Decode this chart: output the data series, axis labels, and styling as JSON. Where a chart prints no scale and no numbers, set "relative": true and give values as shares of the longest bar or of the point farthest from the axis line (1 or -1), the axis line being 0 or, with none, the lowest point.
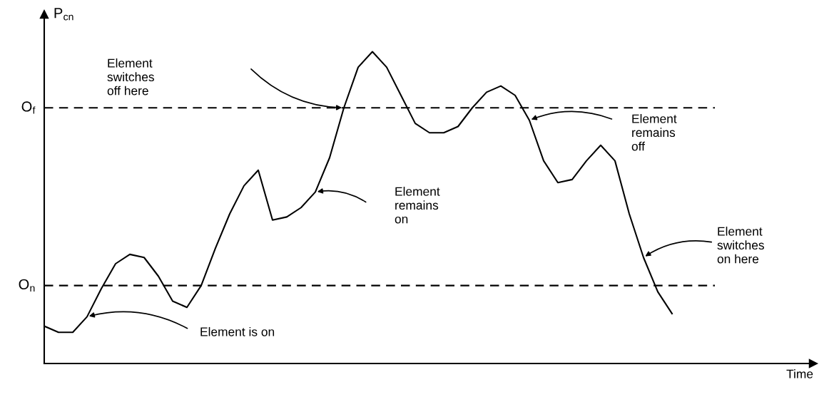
{
  "chart_data": {
    "type": "line",
    "relative": true,
    "ylabel": "P$_{cn}$",
    "categories": [
      null,
      null,
      null,
      null,
      null,
      null,
      null,
      null,
      null,
      null,
      null,
      null,
      null,
      null,
      null,
      null,
      null,
      null,
      null,
      null,
      null,
      null,
      null,
      null,
      null,
      null,
      null,
      null,
      null,
      null,
      null,
      null,
      null,
      null,
      null,
      null,
      null,
      null,
      null,
      null,
      null,
      null,
      null,
      null,
      null
    ],
    "series": [
      {
        "color": "#000000",
        "values": [
          0.12,
          0.1,
          0.1,
          0.15,
          0.24,
          0.32,
          0.35,
          0.34,
          0.28,
          0.2,
          0.18,
          0.25,
          0.37,
          0.48,
          0.57,
          0.62,
          0.46,
          0.47,
          0.5,
          0.55,
          0.66,
          0.82,
          0.95,
          1.0,
          0.95,
          0.86,
          0.77,
          0.74,
          0.74,
          0.76,
          0.82,
          0.87,
          0.89,
          0.86,
          0.78,
          0.65,
          0.58,
          0.59,
          0.65,
          0.7,
          0.65,
          0.48,
          0.34,
          0.23,
          0.16
        ]
      }
    ],
    "ref_lines": [
      {
        "axis": "y",
        "value": 0.82,
        "label": "O$_{f}$",
        "color": "#000000",
        "line_style": "dashed"
      },
      {
        "axis": "y",
        "value": 0.25,
        "label": "O$_{n}$",
        "color": "#000000",
        "line_style": "dashed"
      }
    ],
    "annotations": [
      "Element\nswitches\noff here",
      "Element\nremains\non",
      "Element is on",
      "Element\nremains\noff",
      "Element\nswitches\non here",
      "Time"
    ],
    "legend": false,
    "marker": "none",
    "line_style": "solid"
  }
}
